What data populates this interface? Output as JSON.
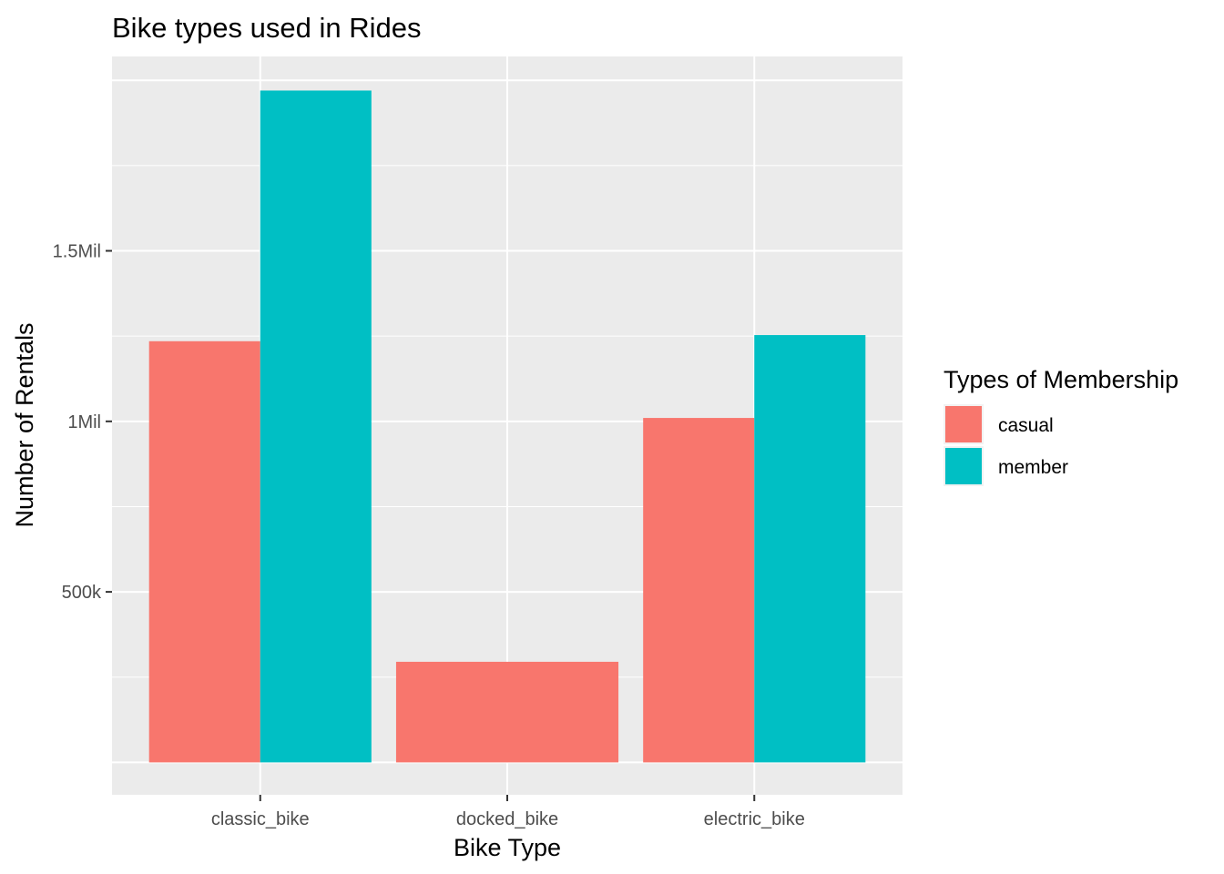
{
  "chart_data": {
    "type": "bar",
    "title": "Bike types used in Rides",
    "xlabel": "Bike Type",
    "ylabel": "Number of Rentals",
    "categories": [
      "classic_bike",
      "docked_bike",
      "electric_bike"
    ],
    "series": [
      {
        "name": "casual",
        "color": "#F8766D",
        "values": [
          1235000,
          295000,
          1010000
        ]
      },
      {
        "name": "member",
        "color": "#00BFC4",
        "values": [
          1970000,
          null,
          1253000
        ]
      }
    ],
    "ylim": [
      -95000,
      2070000
    ],
    "yticks": [
      {
        "value": 500000,
        "label": "500k"
      },
      {
        "value": 1000000,
        "label": "1Mil"
      },
      {
        "value": 1500000,
        "label": "1.5Mil"
      }
    ],
    "grid": true,
    "legend": {
      "title": "Types of Membership",
      "position": "right"
    }
  }
}
